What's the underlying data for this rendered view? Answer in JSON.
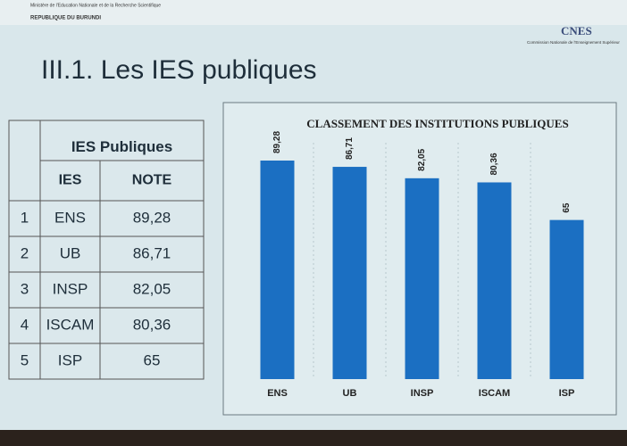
{
  "header": {
    "ministry": "Ministère de l'Education Nationale et de la Recherche Scientifique",
    "country": "REPUBLIQUE DU BURUNDI",
    "logo_text": "CNES",
    "logo_subtitle": "Commission Nationale de l'Enseignement Supérieur",
    "title": "III.1. Les IES publiques"
  },
  "table": {
    "title": "IES Publiques",
    "columns": [
      "IES",
      "NOTE"
    ],
    "rows": [
      [
        "1",
        "ENS",
        "89,28"
      ],
      [
        "2",
        "UB",
        "86,71"
      ],
      [
        "3",
        "INSP",
        "82,05"
      ],
      [
        "4",
        "ISCAM",
        "80,36"
      ],
      [
        "5",
        "ISP",
        "65"
      ]
    ]
  },
  "chart_data": {
    "type": "bar",
    "title": "CLASSEMENT DES INSTITUTIONS PUBLIQUES",
    "categories": [
      "ENS",
      "UB",
      "INSP",
      "ISCAM",
      "ISP"
    ],
    "values": [
      89.28,
      86.71,
      82.05,
      80.36,
      65
    ],
    "value_labels": [
      "89,28",
      "86,71",
      "82,05",
      "80,36",
      "65"
    ],
    "color": "#1b6fc2"
  }
}
